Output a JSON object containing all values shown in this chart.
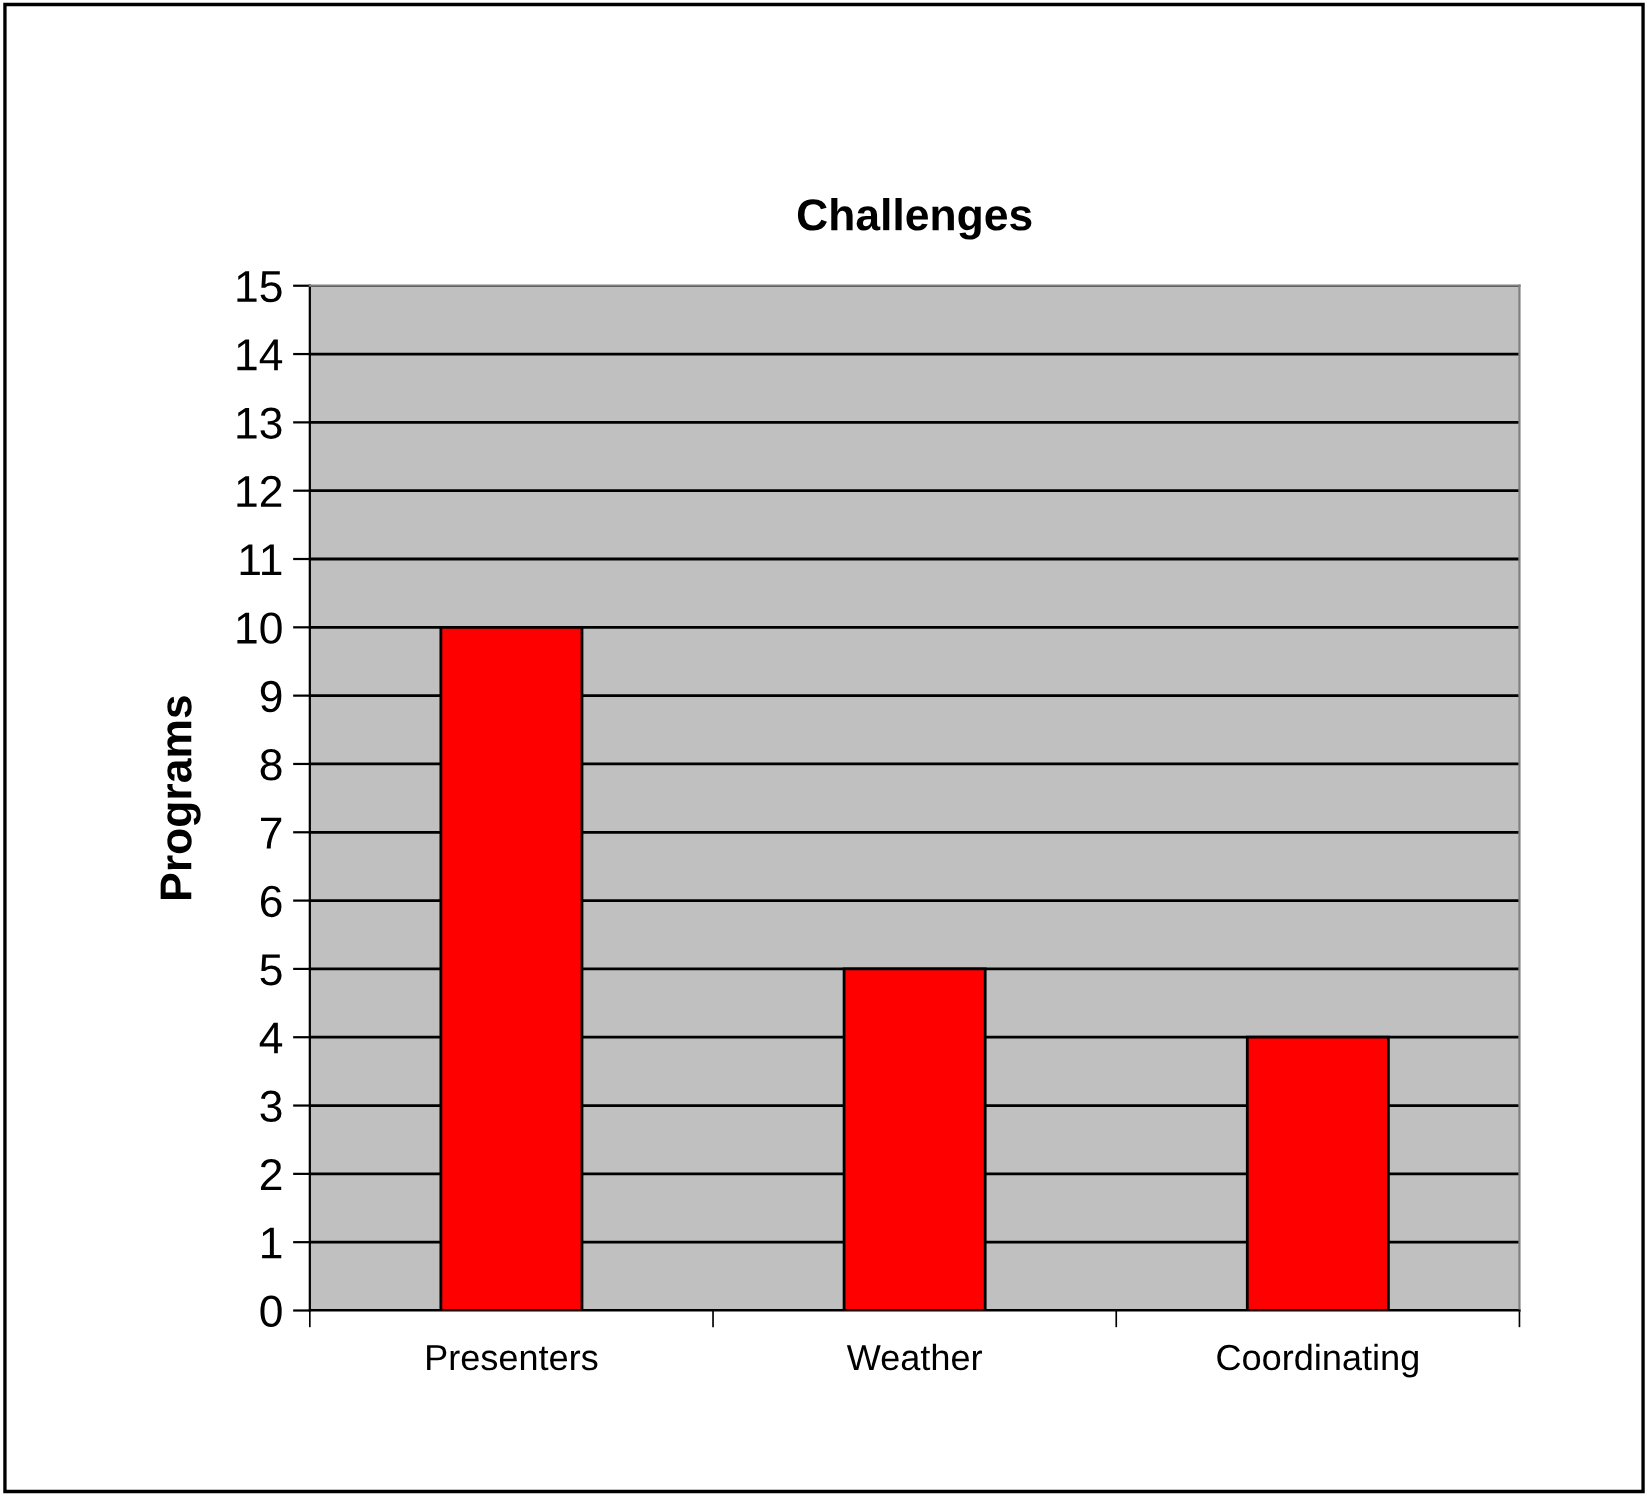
{
  "chart_data": {
    "type": "bar",
    "title": "Challenges",
    "ylabel": "Programs",
    "categories": [
      "Presenters",
      "Weather",
      "Coordinating"
    ],
    "series": [
      {
        "color": "#ff0000",
        "values": [
          10,
          5,
          4
        ]
      }
    ],
    "ylim": [
      0,
      15
    ],
    "yticks": [
      0,
      1,
      2,
      3,
      4,
      5,
      6,
      7,
      8,
      9,
      10,
      11,
      12,
      13,
      14,
      15
    ],
    "grid": "y",
    "legend": false
  }
}
